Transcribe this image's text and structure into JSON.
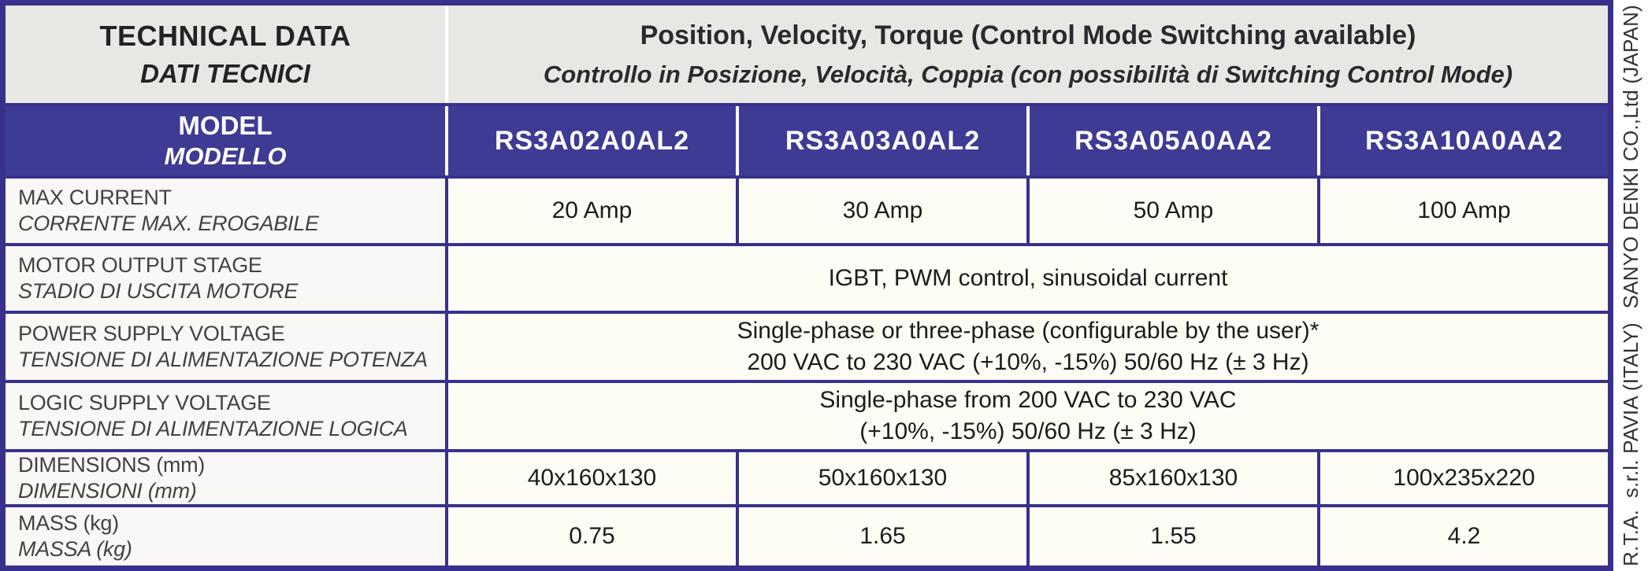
{
  "table": {
    "header": {
      "title_en": "TECHNICAL DATA",
      "title_it": "DATI TECNICI",
      "control_en": "Position, Velocity, Torque (Control Mode Switching available)",
      "control_it": "Controllo in Posizione, Velocità, Coppia (con possibilità di Switching Control Mode)"
    },
    "model_band": {
      "label_en": "MODEL",
      "label_it": "MODELLO",
      "models": [
        "RS3A02A0AL2",
        "RS3A03A0AL2",
        "RS3A05A0AA2",
        "RS3A10A0AA2"
      ]
    },
    "rows": [
      {
        "label_en": "MAX CURRENT",
        "label_it": "CORRENTE MAX. EROGABILE",
        "values": [
          "20 Amp",
          "30 Amp",
          "50 Amp",
          "100 Amp"
        ]
      },
      {
        "label_en": "MOTOR OUTPUT STAGE",
        "label_it": "STADIO DI USCITA MOTORE",
        "lines": [
          "IGBT, PWM control, sinusoidal current"
        ]
      },
      {
        "label_en": "POWER SUPPLY VOLTAGE",
        "label_it": "TENSIONE DI ALIMENTAZIONE POTENZA",
        "lines": [
          "Single-phase or three-phase (configurable by the user)*",
          "200 VAC to 230 VAC (+10%, -15%) 50/60 Hz (± 3 Hz)"
        ]
      },
      {
        "label_en": "LOGIC SUPPLY VOLTAGE",
        "label_it": "TENSIONE DI ALIMENTAZIONE LOGICA",
        "lines": [
          "Single-phase from 200 VAC to 230 VAC",
          "(+10%, -15%) 50/60 Hz (± 3 Hz)"
        ]
      },
      {
        "label_en": "DIMENSIONS (mm)",
        "label_it": "DIMENSIONI (mm)",
        "values": [
          "40x160x130",
          "50x160x130",
          "85x160x130",
          "100x235x220"
        ]
      },
      {
        "label_en": "MASS (kg)",
        "label_it": "MASSA (kg)",
        "values": [
          "0.75",
          "1.65",
          "1.55",
          "4.2"
        ]
      }
    ],
    "credits": {
      "rta": "R.T.A.  s.r.l. PAVIA (ITALY)",
      "sanyo": "SANYO DENKI CO.,Ltd (JAPAN)"
    },
    "colors": {
      "border_indigo": "#37318c",
      "cell_blue": "#3e3b94",
      "header_gray": "#e8e7e4",
      "label_bg": "#faf8f6",
      "value_bg": "#fdfcf5"
    }
  }
}
